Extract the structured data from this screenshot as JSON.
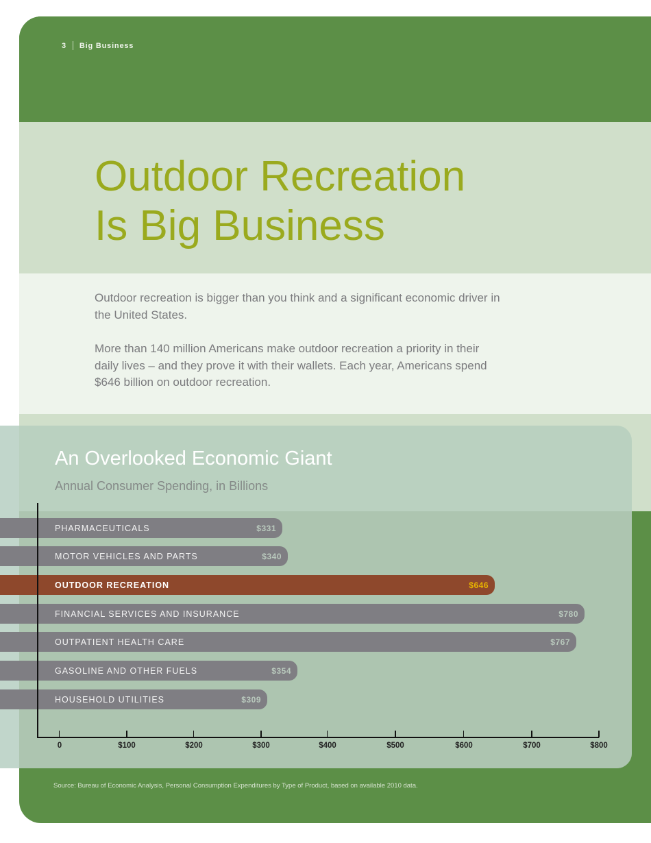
{
  "folio": {
    "page_number": "3",
    "section": "Big Business"
  },
  "title": {
    "line1": "Outdoor Recreation",
    "line2": "Is Big Business"
  },
  "intro": {
    "paragraphs": [
      "Outdoor recreation is bigger than you think and a significant economic driver in the United States.",
      "More than 140 million Americans make outdoor recreation a priority in their daily lives – and they prove it with their wallets. Each year, Americans spend $646 billion on outdoor recreation."
    ]
  },
  "colors": {
    "brand_green": "#5c8f47",
    "title_olive": "#9aaa1e",
    "bar_gray": "#7f7e83",
    "highlight_rust": "#8e482c",
    "highlight_value_gold": "#e8b400"
  },
  "chart_data": {
    "type": "bar",
    "orientation": "horizontal",
    "title": "An Overlooked Economic Giant",
    "subtitle": "Annual Consumer Spending, in Billions",
    "categories": [
      "PHARMACEUTICALS",
      "MOTOR VEHICLES AND PARTS",
      "OUTDOOR RECREATION",
      "FINANCIAL SERVICES AND INSURANCE",
      "OUTPATIENT HEALTH CARE",
      "GASOLINE AND OTHER FUELS",
      "HOUSEHOLD UTILITIES"
    ],
    "values": [
      331,
      340,
      646,
      780,
      767,
      354,
      309
    ],
    "value_labels": [
      "$331",
      "$340",
      "$646",
      "$780",
      "$767",
      "$354",
      "$309"
    ],
    "highlighted_category": "OUTDOOR RECREATION",
    "xlabel": "",
    "ylabel": "",
    "xlim": [
      0,
      800
    ],
    "x_ticks": [
      "0",
      "$100",
      "$200",
      "$300",
      "$400",
      "$500",
      "$600",
      "$700",
      "$800"
    ],
    "grid": false,
    "legend": null,
    "source": "Source:  Bureau of Economic Analysis, Personal Consumption Expenditures by Type of Product, based on available 2010 data."
  }
}
